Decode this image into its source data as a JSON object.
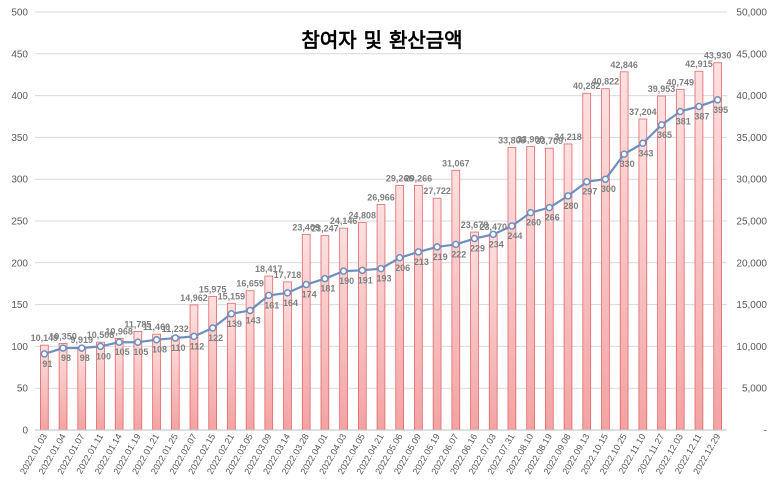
{
  "chart_data": {
    "type": "bar",
    "title": "참여자 및 환산금액",
    "grid": true,
    "colors": {
      "bar_fill_top": "#fde0e0",
      "bar_fill_bottom": "#f4a3a3",
      "bar_stroke": "#e06666",
      "line": "#6f8fbf",
      "marker_fill": "#ffffff",
      "grid": "#d9d9d9"
    },
    "left_axis": {
      "min": 0,
      "max": 500,
      "step": 50
    },
    "right_axis": {
      "min": 0,
      "max": 50000,
      "step": 5000
    },
    "x_labels": [
      "2022.01.03",
      "2022.01.04",
      "2022.01.07",
      "2022.01.11",
      "2022.01.14",
      "2022.01.19",
      "2022.01.21",
      "2022.01.25",
      "2022.02.07",
      "2022.02.15",
      "2022.02.21",
      "2022.03.05",
      "2022.03.09",
      "2022.03.14",
      "2022.03.28",
      "2022.04.01",
      "2022.04.03",
      "2022.04.05",
      "2022.04.21",
      "2022.05.06",
      "2022.05.09",
      "2022.05.19",
      "2022.06.07",
      "2022.06.16",
      "2022.07.03",
      "2022.07.31",
      "2022.08.10",
      "2022.08.19",
      "2022.09.08",
      "2022.09.13",
      "2022.10.15",
      "2022.10.25",
      "2022.11.10",
      "2022.11.27",
      "2022.12.03",
      "2022.12.11",
      "2022.12.29"
    ],
    "series": [
      {
        "axis": "right",
        "chart": "bar",
        "values": [
          10149,
          10350,
          9919,
          10508,
          10968,
          11785,
          11460,
          11232,
          14962,
          15975,
          15159,
          16659,
          18417,
          17718,
          23409,
          23247,
          24146,
          24808,
          26966,
          29266,
          29266,
          27722,
          31067,
          23678,
          23470,
          33808,
          33900,
          33709,
          34218,
          40282,
          40822,
          42846,
          37204,
          39953,
          40749,
          42915,
          43930
        ],
        "labels": [
          "10,149",
          "10,350",
          "9,919",
          "10,508",
          "10,968",
          "11,785",
          "11,460",
          "11,232",
          "14,962",
          "15,975",
          "15,159",
          "16,659",
          "18,417",
          "17,718",
          "23,409",
          "23,247",
          "24,146",
          "24,808",
          "26,966",
          "29,266",
          "29,266",
          "27,722",
          "31,067",
          "23,678",
          "23,470",
          "33,808",
          "33,900",
          "33,709",
          "34,218",
          "40,282",
          "40,822",
          "42,846",
          "37,204",
          "39,953",
          "40,749",
          "42,915",
          "43,930"
        ]
      },
      {
        "axis": "left",
        "chart": "line",
        "values": [
          91,
          98,
          98,
          100,
          105,
          105,
          108,
          110,
          112,
          122,
          139,
          143,
          161,
          164,
          174,
          181,
          190,
          191,
          193,
          206,
          213,
          219,
          222,
          229,
          234,
          244,
          260,
          266,
          280,
          297,
          300,
          330,
          343,
          365,
          381,
          387,
          395
        ],
        "labels": [
          "91",
          "98",
          "98",
          "100",
          "105",
          "105",
          "108",
          "110",
          "112",
          "122",
          "139",
          "143",
          "161",
          "164",
          "174",
          "181",
          "190",
          "191",
          "193",
          "206",
          "213",
          "219",
          "222",
          "229",
          "234",
          "244",
          "260",
          "266",
          "280",
          "297",
          "300",
          "330",
          "343",
          "365",
          "381",
          "387",
          "395"
        ]
      }
    ]
  }
}
